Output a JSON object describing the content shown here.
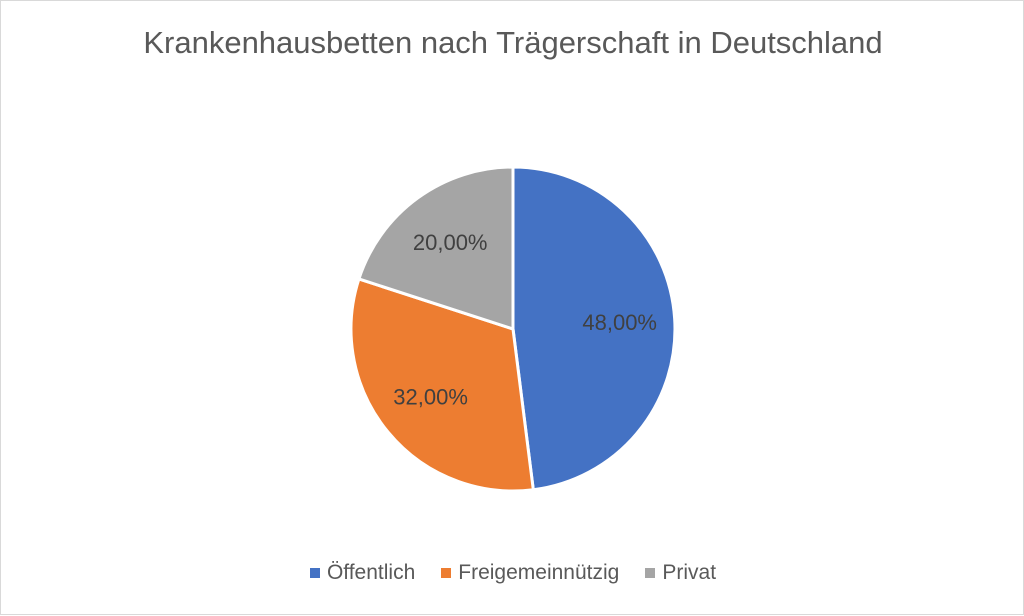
{
  "chart_data": {
    "type": "pie",
    "title": "Krankenhausbetten nach Trägerschaft in Deutschland",
    "categories": [
      "Öffentlich",
      "Freigemeinnützig",
      "Privat"
    ],
    "values": [
      48,
      32,
      20
    ],
    "value_labels": [
      "48,00%",
      "32,00%",
      "20,00%"
    ],
    "colors": [
      "#4472C4",
      "#ED7D31",
      "#A5A5A5"
    ],
    "legend_position": "bottom",
    "start_angle": "12 o'clock, clockwise"
  }
}
